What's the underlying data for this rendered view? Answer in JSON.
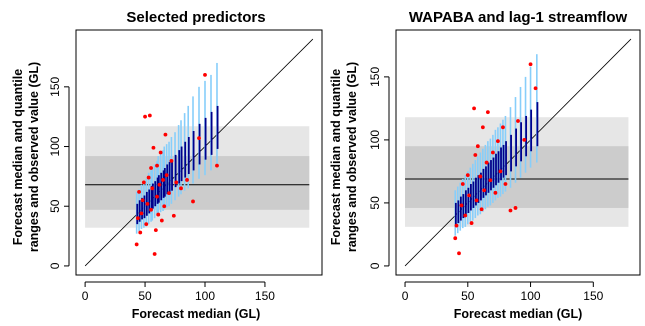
{
  "figure": {
    "background": "#ffffff"
  },
  "colors": {
    "band_outer": "#e6e6e6",
    "band_inner": "#cccccc",
    "range_outer": "#87cefa",
    "range_inner": "#00008b",
    "observed": "#ff0000",
    "reference_line": "#000000"
  },
  "chart_data": [
    {
      "type": "scatter",
      "title": "Selected predictors",
      "xlabel": "Forecast median (GL)",
      "ylabel_line1": "Forecast median and quantile",
      "ylabel_line2": "ranges and observed value (GL)",
      "xlim": [
        0,
        190
      ],
      "ylim": [
        0,
        190
      ],
      "xticks": [
        0,
        50,
        100,
        150
      ],
      "yticks": [
        0,
        50,
        100,
        150
      ],
      "diagonal": "1:1 line",
      "climatology": {
        "median": 68,
        "inner_band": [
          47,
          92
        ],
        "outer_band": [
          32,
          117
        ]
      },
      "band_x_range": [
        0,
        187
      ],
      "series": [
        {
          "x": [
            43,
            45,
            47,
            49,
            51,
            53,
            55,
            56,
            58,
            60,
            61,
            63,
            65,
            66,
            68,
            70,
            72,
            75,
            78,
            80,
            83,
            86,
            90,
            95,
            100,
            105,
            110
          ],
          "p_low": [
            27,
            29,
            31,
            32,
            33,
            35,
            37,
            38,
            40,
            42,
            43,
            45,
            46,
            48,
            49,
            50,
            52,
            55,
            58,
            60,
            63,
            65,
            69,
            73,
            76,
            80,
            85
          ],
          "p_high": [
            62,
            64,
            68,
            70,
            73,
            78,
            80,
            82,
            85,
            88,
            92,
            95,
            97,
            100,
            102,
            104,
            108,
            112,
            118,
            122,
            128,
            134,
            142,
            150,
            155,
            160,
            170
          ]
        },
        {
          "x": [
            43,
            45,
            47,
            49,
            51,
            53,
            55,
            56,
            58,
            60,
            61,
            63,
            65,
            66,
            68,
            70,
            72,
            75,
            78,
            80,
            83,
            86,
            90,
            95,
            100,
            105,
            110
          ],
          "q_low": [
            35,
            37,
            39,
            40,
            42,
            44,
            46,
            48,
            50,
            52,
            53,
            55,
            57,
            58,
            60,
            62,
            63,
            66,
            69,
            71,
            74,
            77,
            80,
            85,
            89,
            93,
            98
          ],
          "q_high": [
            52,
            55,
            57,
            59,
            62,
            64,
            67,
            69,
            71,
            74,
            76,
            78,
            80,
            82,
            85,
            87,
            89,
            93,
            97,
            100,
            104,
            108,
            113,
            119,
            124,
            129,
            134
          ]
        },
        {
          "obs_x": [
            43,
            44,
            45,
            46,
            47,
            48,
            49,
            50,
            51,
            52,
            53,
            54,
            55,
            55,
            56,
            57,
            58,
            59,
            60,
            60,
            61,
            62,
            63,
            64,
            65,
            66,
            67,
            68,
            70,
            72,
            74,
            76,
            80,
            85,
            90,
            95,
            100,
            110
          ],
          "obs_y": [
            18,
            40,
            62,
            28,
            44,
            55,
            70,
            125,
            35,
            52,
            74,
            126,
            47,
            82,
            65,
            99,
            10,
            30,
            58,
            84,
            43,
            68,
            95,
            38,
            72,
            50,
            110,
            76,
            61,
            88,
            42,
            70,
            65,
            72,
            54,
            107,
            160,
            84
          ]
        }
      ]
    },
    {
      "type": "scatter",
      "title": "WAPABA and lag-1 streamflow",
      "xlabel": "Forecast median (GL)",
      "ylabel_line1": "Forecast median and quantile",
      "ylabel_line2": "ranges and observed value (GL)",
      "xlim": [
        0,
        180
      ],
      "ylim": [
        0,
        180
      ],
      "xticks": [
        0,
        50,
        100,
        150
      ],
      "yticks": [
        0,
        50,
        100,
        150
      ],
      "diagonal": "1:1 line",
      "climatology": {
        "median": 69,
        "inner_band": [
          46,
          95
        ],
        "outer_band": [
          31,
          118
        ]
      },
      "band_x_range": [
        0,
        178
      ],
      "series": [
        {
          "x": [
            40,
            42,
            44,
            46,
            48,
            50,
            52,
            54,
            56,
            58,
            60,
            62,
            64,
            66,
            68,
            70,
            72,
            74,
            76,
            78,
            80,
            84,
            88,
            92,
            96,
            100,
            105
          ],
          "p_low": [
            24,
            26,
            28,
            30,
            31,
            33,
            35,
            36,
            38,
            40,
            41,
            43,
            45,
            47,
            48,
            50,
            52,
            54,
            55,
            57,
            59,
            62,
            66,
            70,
            74,
            78,
            82
          ],
          "p_high": [
            60,
            63,
            66,
            69,
            72,
            75,
            78,
            81,
            84,
            87,
            90,
            93,
            96,
            99,
            101,
            104,
            108,
            110,
            113,
            116,
            119,
            126,
            134,
            142,
            150,
            158,
            168
          ]
        },
        {
          "x": [
            40,
            42,
            44,
            46,
            48,
            50,
            52,
            54,
            56,
            58,
            60,
            62,
            64,
            66,
            68,
            70,
            72,
            74,
            76,
            78,
            80,
            84,
            88,
            92,
            96,
            100,
            105
          ],
          "q_low": [
            32,
            34,
            36,
            38,
            40,
            42,
            44,
            46,
            48,
            50,
            52,
            54,
            56,
            58,
            60,
            62,
            64,
            66,
            68,
            70,
            72,
            75,
            79,
            83,
            87,
            91,
            95
          ],
          "q_high": [
            50,
            52,
            55,
            57,
            60,
            62,
            65,
            67,
            70,
            72,
            74,
            77,
            79,
            82,
            84,
            86,
            89,
            91,
            94,
            96,
            99,
            104,
            109,
            114,
            119,
            124,
            130
          ]
        },
        {
          "obs_x": [
            40,
            41,
            43,
            45,
            46,
            48,
            50,
            51,
            53,
            55,
            56,
            57,
            58,
            60,
            61,
            62,
            63,
            65,
            66,
            68,
            70,
            72,
            74,
            76,
            78,
            80,
            84,
            88,
            90,
            95,
            100,
            104
          ],
          "obs_y": [
            22,
            32,
            10,
            48,
            65,
            40,
            72,
            56,
            34,
            125,
            88,
            52,
            95,
            71,
            45,
            110,
            60,
            82,
            122,
            68,
            90,
            58,
            99,
            75,
            110,
            65,
            44,
            46,
            115,
            100,
            160,
            141
          ]
        }
      ]
    }
  ]
}
